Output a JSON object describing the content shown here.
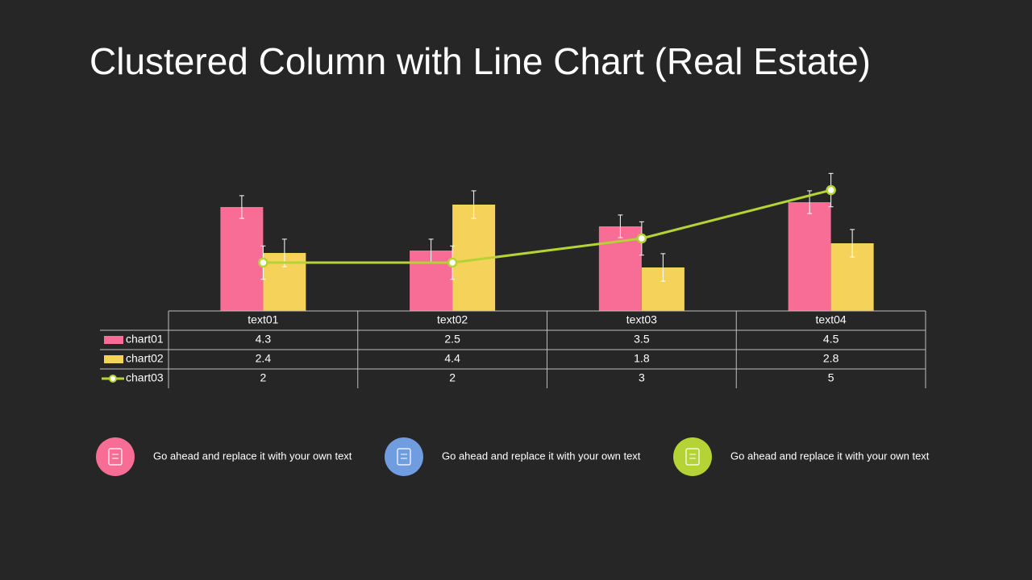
{
  "chart_data": {
    "type": "bar-line",
    "title": "Clustered Column with Line Chart (Real Estate)",
    "categories": [
      "text01",
      "text02",
      "text03",
      "text04"
    ],
    "ylim": [
      0,
      6
    ],
    "series": [
      {
        "name": "chart01",
        "type": "bar",
        "color": "#f76d96",
        "values": [
          4.3,
          2.5,
          3.5,
          4.5
        ],
        "errors": [
          0.47,
          0.47,
          0.47,
          0.47
        ]
      },
      {
        "name": "chart02",
        "type": "bar",
        "color": "#f5d35b",
        "values": [
          2.4,
          4.4,
          1.8,
          2.8
        ],
        "errors": [
          0.57,
          0.57,
          0.57,
          0.57
        ]
      },
      {
        "name": "chart03",
        "type": "line",
        "color": "#b5d334",
        "values": [
          2,
          2,
          3,
          5
        ],
        "errors": [
          0.69,
          0.69,
          0.69,
          0.69
        ]
      }
    ]
  },
  "features": [
    {
      "text": "Go ahead and replace it with your own text",
      "color": "#f76d96"
    },
    {
      "text": "Go ahead and replace it with your own text",
      "color": "#6f9de0"
    },
    {
      "text": "Go ahead and replace it with your own text",
      "color": "#b5d334"
    }
  ]
}
